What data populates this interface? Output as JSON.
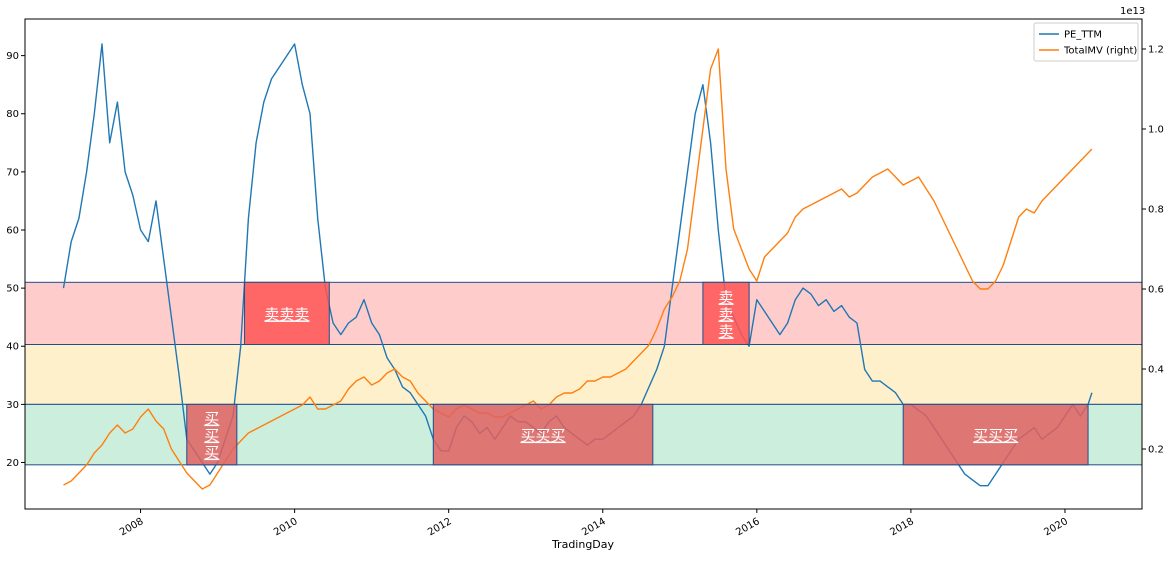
{
  "chart_data": {
    "type": "line",
    "title": "",
    "xlabel": "TradingDay",
    "ylabel_left": "",
    "ylabel_right": "",
    "right_axis_offset_text": "1e13",
    "xlim": [
      2006.5,
      2021.0
    ],
    "ylim_left": [
      12,
      96.3
    ],
    "ylim_right": [
      0.05,
      1.275
    ],
    "x_ticks": [
      2008,
      2010,
      2012,
      2014,
      2016,
      2018,
      2020
    ],
    "x_tick_labels": [
      "2008",
      "2010",
      "2012",
      "2014",
      "2016",
      "2018",
      "2020"
    ],
    "y_left_ticks": [
      20,
      30,
      40,
      50,
      60,
      70,
      80,
      90
    ],
    "y_left_tick_labels": [
      "20",
      "30",
      "40",
      "50",
      "60",
      "70",
      "80",
      "90"
    ],
    "y_right_ticks": [
      0.2,
      0.4,
      0.6,
      0.8,
      1.0,
      1.2
    ],
    "y_right_tick_labels": [
      "0.2",
      "0.4",
      "0.6",
      "0.8",
      "1.0",
      "1.2"
    ],
    "grid": false,
    "legend_position": "top-right",
    "bands": [
      {
        "y0": 40.3,
        "y1": 51.0,
        "color": "#ffcccc"
      },
      {
        "y0": 30.0,
        "y1": 40.3,
        "color": "#fff0cc"
      },
      {
        "y0": 19.6,
        "y1": 30.0,
        "color": "#ccefdd"
      }
    ],
    "signal_boxes": [
      {
        "x0": 2008.6,
        "x1": 2009.25,
        "y0": 19.6,
        "y1": 30.0,
        "label": "买\n买\n买",
        "color": "#e06060"
      },
      {
        "x0": 2009.35,
        "x1": 2010.45,
        "y0": 40.3,
        "y1": 51.0,
        "label": "卖卖卖",
        "color": "#ff5555"
      },
      {
        "x0": 2011.8,
        "x1": 2014.65,
        "y0": 19.6,
        "y1": 30.0,
        "label": "买买买",
        "color": "#e06060"
      },
      {
        "x0": 2015.3,
        "x1": 2015.9,
        "y0": 40.3,
        "y1": 51.0,
        "label": "卖\n卖\n卖",
        "color": "#ff5555"
      },
      {
        "x0": 2017.9,
        "x1": 2020.3,
        "y0": 19.6,
        "y1": 30.0,
        "label": "买买买",
        "color": "#e06060"
      }
    ],
    "series": [
      {
        "name": "PE_TTM",
        "axis": "left",
        "color": "#1f77b4",
        "x": [
          2007.0,
          2007.1,
          2007.2,
          2007.3,
          2007.4,
          2007.5,
          2007.6,
          2007.7,
          2007.8,
          2007.9,
          2008.0,
          2008.1,
          2008.2,
          2008.3,
          2008.4,
          2008.5,
          2008.6,
          2008.7,
          2008.8,
          2008.9,
          2009.0,
          2009.1,
          2009.2,
          2009.3,
          2009.4,
          2009.5,
          2009.6,
          2009.7,
          2009.8,
          2009.9,
          2010.0,
          2010.1,
          2010.2,
          2010.3,
          2010.4,
          2010.5,
          2010.6,
          2010.7,
          2010.8,
          2010.9,
          2011.0,
          2011.1,
          2011.2,
          2011.3,
          2011.4,
          2011.5,
          2011.6,
          2011.7,
          2011.8,
          2011.9,
          2012.0,
          2012.1,
          2012.2,
          2012.3,
          2012.4,
          2012.5,
          2012.6,
          2012.7,
          2012.8,
          2012.9,
          2013.0,
          2013.1,
          2013.2,
          2013.3,
          2013.4,
          2013.5,
          2013.6,
          2013.7,
          2013.8,
          2013.9,
          2014.0,
          2014.1,
          2014.2,
          2014.3,
          2014.4,
          2014.5,
          2014.6,
          2014.7,
          2014.8,
          2014.9,
          2015.0,
          2015.1,
          2015.2,
          2015.3,
          2015.4,
          2015.5,
          2015.6,
          2015.7,
          2015.8,
          2015.9,
          2016.0,
          2016.1,
          2016.2,
          2016.3,
          2016.4,
          2016.5,
          2016.6,
          2016.7,
          2016.8,
          2016.9,
          2017.0,
          2017.1,
          2017.2,
          2017.3,
          2017.4,
          2017.5,
          2017.6,
          2017.7,
          2017.8,
          2017.9,
          2018.0,
          2018.1,
          2018.2,
          2018.3,
          2018.4,
          2018.5,
          2018.6,
          2018.7,
          2018.8,
          2018.9,
          2019.0,
          2019.1,
          2019.2,
          2019.3,
          2019.4,
          2019.5,
          2019.6,
          2019.7,
          2019.8,
          2019.9,
          2020.0,
          2020.1,
          2020.2,
          2020.3,
          2020.35
        ],
        "y": [
          50,
          58,
          62,
          70,
          80,
          92,
          75,
          82,
          70,
          66,
          60,
          58,
          65,
          55,
          45,
          35,
          24,
          22,
          20,
          18,
          20,
          24,
          28,
          40,
          62,
          75,
          82,
          86,
          88,
          90,
          92,
          85,
          80,
          62,
          50,
          44,
          42,
          44,
          45,
          48,
          44,
          42,
          38,
          36,
          33,
          32,
          30,
          28,
          24,
          22,
          22,
          26,
          28,
          27,
          25,
          26,
          24,
          26,
          28,
          27,
          27,
          26,
          25,
          27,
          28,
          26,
          25,
          24,
          23,
          24,
          24,
          25,
          26,
          27,
          28,
          30,
          33,
          36,
          40,
          50,
          60,
          70,
          80,
          85,
          75,
          60,
          48,
          45,
          42,
          40,
          48,
          46,
          44,
          42,
          44,
          48,
          50,
          49,
          47,
          48,
          46,
          47,
          45,
          44,
          36,
          34,
          34,
          33,
          32,
          30,
          30,
          29,
          28,
          26,
          24,
          22,
          20,
          18,
          17,
          16,
          16,
          18,
          20,
          22,
          24,
          25,
          26,
          24,
          25,
          26,
          28,
          30,
          28,
          30,
          32
        ]
      },
      {
        "name": "TotalMV (right)",
        "axis": "right",
        "color": "#ff7f0e",
        "x": [
          2007.0,
          2007.1,
          2007.2,
          2007.3,
          2007.4,
          2007.5,
          2007.6,
          2007.7,
          2007.8,
          2007.9,
          2008.0,
          2008.1,
          2008.2,
          2008.3,
          2008.4,
          2008.5,
          2008.6,
          2008.7,
          2008.8,
          2008.9,
          2009.0,
          2009.1,
          2009.2,
          2009.3,
          2009.4,
          2009.5,
          2009.6,
          2009.7,
          2009.8,
          2009.9,
          2010.0,
          2010.1,
          2010.2,
          2010.3,
          2010.4,
          2010.5,
          2010.6,
          2010.7,
          2010.8,
          2010.9,
          2011.0,
          2011.1,
          2011.2,
          2011.3,
          2011.4,
          2011.5,
          2011.6,
          2011.7,
          2011.8,
          2011.9,
          2012.0,
          2012.1,
          2012.2,
          2012.3,
          2012.4,
          2012.5,
          2012.6,
          2012.7,
          2012.8,
          2012.9,
          2013.0,
          2013.1,
          2013.2,
          2013.3,
          2013.4,
          2013.5,
          2013.6,
          2013.7,
          2013.8,
          2013.9,
          2014.0,
          2014.1,
          2014.2,
          2014.3,
          2014.4,
          2014.5,
          2014.6,
          2014.7,
          2014.8,
          2014.9,
          2015.0,
          2015.1,
          2015.2,
          2015.3,
          2015.4,
          2015.5,
          2015.6,
          2015.7,
          2015.8,
          2015.9,
          2016.0,
          2016.1,
          2016.2,
          2016.3,
          2016.4,
          2016.5,
          2016.6,
          2016.7,
          2016.8,
          2016.9,
          2017.0,
          2017.1,
          2017.2,
          2017.3,
          2017.4,
          2017.5,
          2017.6,
          2017.7,
          2017.8,
          2017.9,
          2018.0,
          2018.1,
          2018.2,
          2018.3,
          2018.4,
          2018.5,
          2018.6,
          2018.7,
          2018.8,
          2018.9,
          2019.0,
          2019.1,
          2019.2,
          2019.3,
          2019.4,
          2019.5,
          2019.6,
          2019.7,
          2019.8,
          2019.9,
          2020.0,
          2020.1,
          2020.2,
          2020.3,
          2020.35
        ],
        "y": [
          0.11,
          0.12,
          0.14,
          0.16,
          0.19,
          0.21,
          0.24,
          0.26,
          0.24,
          0.25,
          0.28,
          0.3,
          0.27,
          0.25,
          0.2,
          0.17,
          0.14,
          0.12,
          0.1,
          0.11,
          0.14,
          0.17,
          0.2,
          0.22,
          0.24,
          0.25,
          0.26,
          0.27,
          0.28,
          0.29,
          0.3,
          0.31,
          0.33,
          0.3,
          0.3,
          0.31,
          0.32,
          0.35,
          0.37,
          0.38,
          0.36,
          0.37,
          0.39,
          0.4,
          0.38,
          0.37,
          0.34,
          0.32,
          0.3,
          0.29,
          0.28,
          0.3,
          0.31,
          0.3,
          0.29,
          0.29,
          0.28,
          0.28,
          0.29,
          0.3,
          0.31,
          0.32,
          0.3,
          0.31,
          0.33,
          0.34,
          0.34,
          0.35,
          0.37,
          0.37,
          0.38,
          0.38,
          0.39,
          0.4,
          0.42,
          0.44,
          0.46,
          0.5,
          0.55,
          0.58,
          0.62,
          0.7,
          0.85,
          1.0,
          1.15,
          1.2,
          0.9,
          0.75,
          0.7,
          0.65,
          0.62,
          0.68,
          0.7,
          0.72,
          0.74,
          0.78,
          0.8,
          0.81,
          0.82,
          0.83,
          0.84,
          0.85,
          0.83,
          0.84,
          0.86,
          0.88,
          0.89,
          0.9,
          0.88,
          0.86,
          0.87,
          0.88,
          0.85,
          0.82,
          0.78,
          0.74,
          0.7,
          0.66,
          0.62,
          0.6,
          0.6,
          0.62,
          0.66,
          0.72,
          0.78,
          0.8,
          0.79,
          0.82,
          0.84,
          0.86,
          0.88,
          0.9,
          0.92,
          0.94,
          0.95
        ]
      }
    ]
  }
}
